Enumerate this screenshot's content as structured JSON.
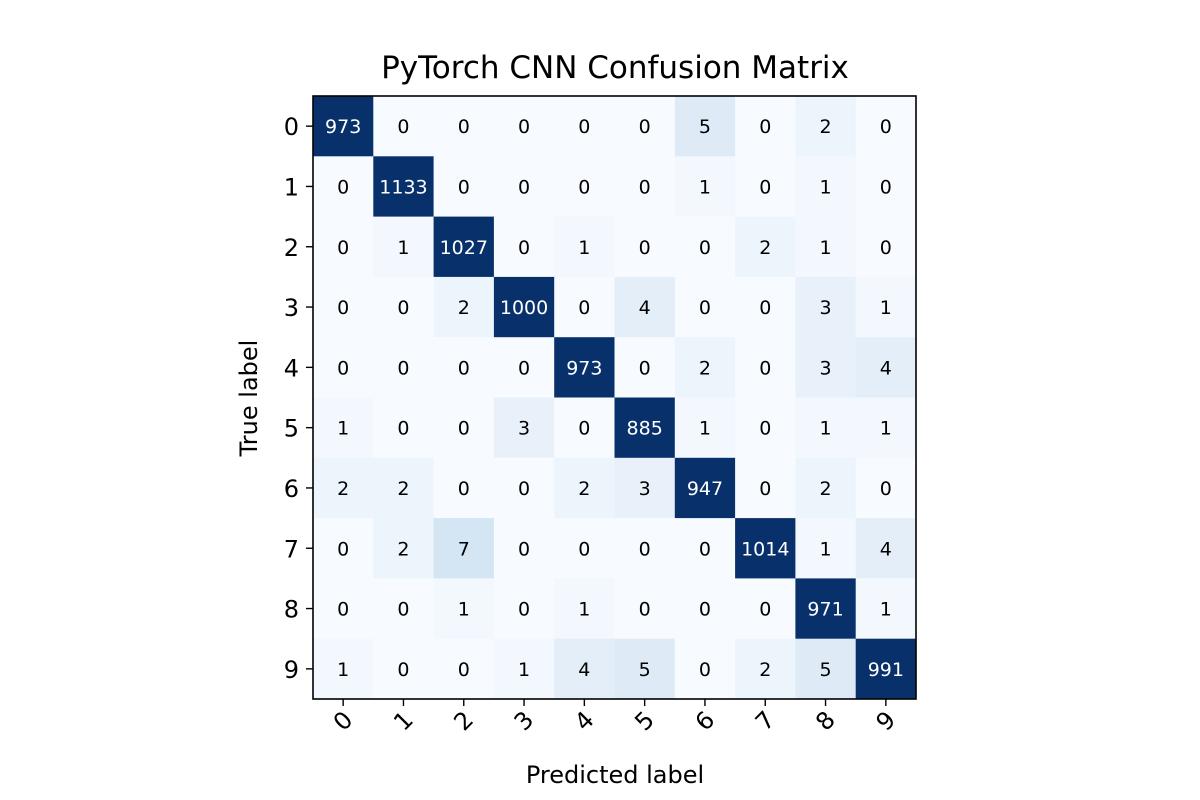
{
  "chart_data": {
    "type": "heatmap",
    "title": "PyTorch CNN Confusion Matrix",
    "xlabel": "Predicted label",
    "ylabel": "True label",
    "x_categories": [
      "0",
      "1",
      "2",
      "3",
      "4",
      "5",
      "6",
      "7",
      "8",
      "9"
    ],
    "y_categories": [
      "0",
      "1",
      "2",
      "3",
      "4",
      "5",
      "6",
      "7",
      "8",
      "9"
    ],
    "values": [
      [
        973,
        0,
        0,
        0,
        0,
        0,
        5,
        0,
        2,
        0
      ],
      [
        0,
        1133,
        0,
        0,
        0,
        0,
        1,
        0,
        1,
        0
      ],
      [
        0,
        1,
        1027,
        0,
        1,
        0,
        0,
        2,
        1,
        0
      ],
      [
        0,
        0,
        2,
        1000,
        0,
        4,
        0,
        0,
        3,
        1
      ],
      [
        0,
        0,
        0,
        0,
        973,
        0,
        2,
        0,
        3,
        4
      ],
      [
        1,
        0,
        0,
        3,
        0,
        885,
        1,
        0,
        1,
        1
      ],
      [
        2,
        2,
        0,
        0,
        2,
        3,
        947,
        0,
        2,
        0
      ],
      [
        0,
        2,
        7,
        0,
        0,
        0,
        0,
        1014,
        1,
        4
      ],
      [
        0,
        0,
        1,
        0,
        1,
        0,
        0,
        0,
        971,
        1
      ],
      [
        1,
        0,
        0,
        1,
        4,
        5,
        0,
        2,
        5,
        991
      ]
    ],
    "colormap": "Blues",
    "colors": {
      "low": "#f7fbff",
      "high": "#08306b",
      "text_dark": "#000000",
      "text_light": "#ffffff"
    },
    "grid": false,
    "legend": "none"
  }
}
